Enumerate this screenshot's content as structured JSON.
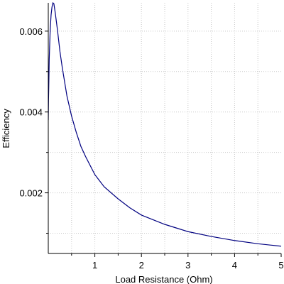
{
  "chart_data": {
    "type": "line",
    "title": "",
    "xlabel": "Load Resistance (Ohm)",
    "ylabel": "Efficiency",
    "xlim": [
      0,
      5
    ],
    "ylim": [
      0.0005,
      0.0067
    ],
    "x_ticks": [
      {
        "value": 1,
        "label": "1"
      },
      {
        "value": 2,
        "label": "2"
      },
      {
        "value": 3,
        "label": "3"
      },
      {
        "value": 4,
        "label": "4"
      },
      {
        "value": 5,
        "label": "5"
      }
    ],
    "y_ticks": [
      {
        "value": 0.002,
        "label": "0.002"
      },
      {
        "value": 0.004,
        "label": "0.004"
      },
      {
        "value": 0.006,
        "label": "0.006"
      }
    ],
    "grid": true,
    "grid_style": "dotted",
    "series": [
      {
        "color": "#000080",
        "points": [
          [
            0.0,
            0.0038
          ],
          [
            0.005,
            0.0043
          ],
          [
            0.01,
            0.0046
          ],
          [
            0.02,
            0.0053
          ],
          [
            0.04,
            0.006
          ],
          [
            0.06,
            0.0064
          ],
          [
            0.08,
            0.0066
          ],
          [
            0.1,
            0.0067
          ],
          [
            0.12,
            0.00668
          ],
          [
            0.15,
            0.00645
          ],
          [
            0.2,
            0.006
          ],
          [
            0.25,
            0.0055
          ],
          [
            0.3,
            0.0051
          ],
          [
            0.4,
            0.0044
          ],
          [
            0.5,
            0.0039
          ],
          [
            0.6,
            0.0035
          ],
          [
            0.7,
            0.00315
          ],
          [
            0.8,
            0.0029
          ],
          [
            1.0,
            0.00245
          ],
          [
            1.2,
            0.00215
          ],
          [
            1.5,
            0.00185
          ],
          [
            1.75,
            0.00163
          ],
          [
            2.0,
            0.00145
          ],
          [
            2.5,
            0.00122
          ],
          [
            3.0,
            0.00104
          ],
          [
            3.5,
            0.00092
          ],
          [
            4.0,
            0.00082
          ],
          [
            4.5,
            0.00074
          ],
          [
            5.0,
            0.00068
          ]
        ]
      }
    ]
  }
}
